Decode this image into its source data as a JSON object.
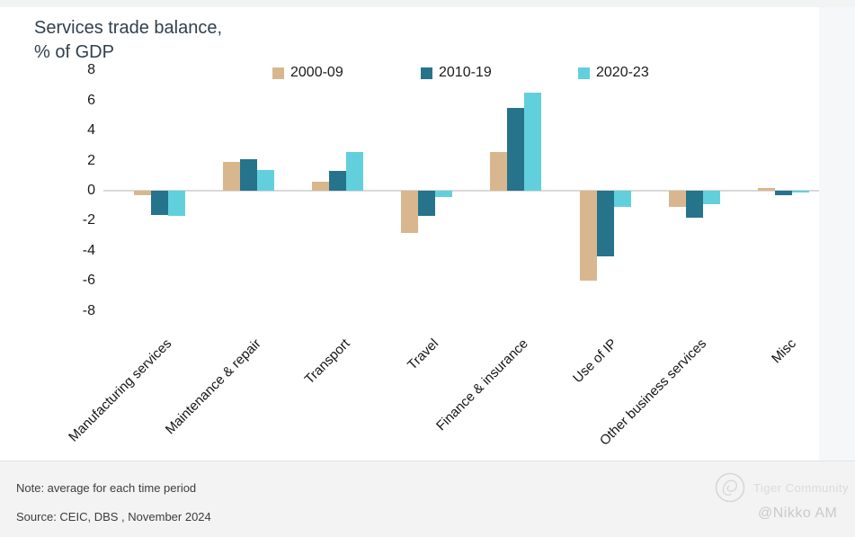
{
  "title": {
    "line1": "Services trade balance,",
    "line2": "% of GDP"
  },
  "note": "Note: average for each time period",
  "source": "Source: CEIC, DBS , November 2024",
  "watermark": {
    "brand": "Tiger Community",
    "handle": "@Nikko AM"
  },
  "colors": {
    "series_2000_09": "#d8b78e",
    "series_2010_19": "#26738c",
    "series_2020_23": "#62d0dc",
    "zero_line": "#d9d9d9",
    "title_text": "#31404e",
    "footer_background": "#f3f3f3"
  },
  "chart_data": {
    "type": "bar",
    "title": "Services trade balance, % of GDP",
    "xlabel": "",
    "ylabel": "% of GDP",
    "ylim": [
      -8,
      8
    ],
    "ytick_labels": [
      8,
      6,
      4,
      2,
      0,
      -2,
      -4,
      -6,
      -8
    ],
    "grid": false,
    "legend_position": "top",
    "categories": [
      "Manufacturing services",
      "Maintenance & repair",
      "Transport",
      "Travel",
      "Finance & insurance",
      "Use of IP",
      "Other business services",
      "Misc"
    ],
    "series": [
      {
        "name": "2000-09",
        "color": "#d8b78e",
        "values": [
          -0.3,
          1.9,
          0.6,
          -2.8,
          2.6,
          -6.0,
          -1.1,
          0.2
        ]
      },
      {
        "name": "2010-19",
        "color": "#26738c",
        "values": [
          -1.6,
          2.1,
          1.3,
          -1.7,
          5.5,
          -4.4,
          -1.8,
          -0.3
        ]
      },
      {
        "name": "2020-23",
        "color": "#62d0dc",
        "values": [
          -1.7,
          1.4,
          2.6,
          -0.4,
          6.5,
          -1.1,
          -0.9,
          -0.1
        ]
      }
    ]
  }
}
